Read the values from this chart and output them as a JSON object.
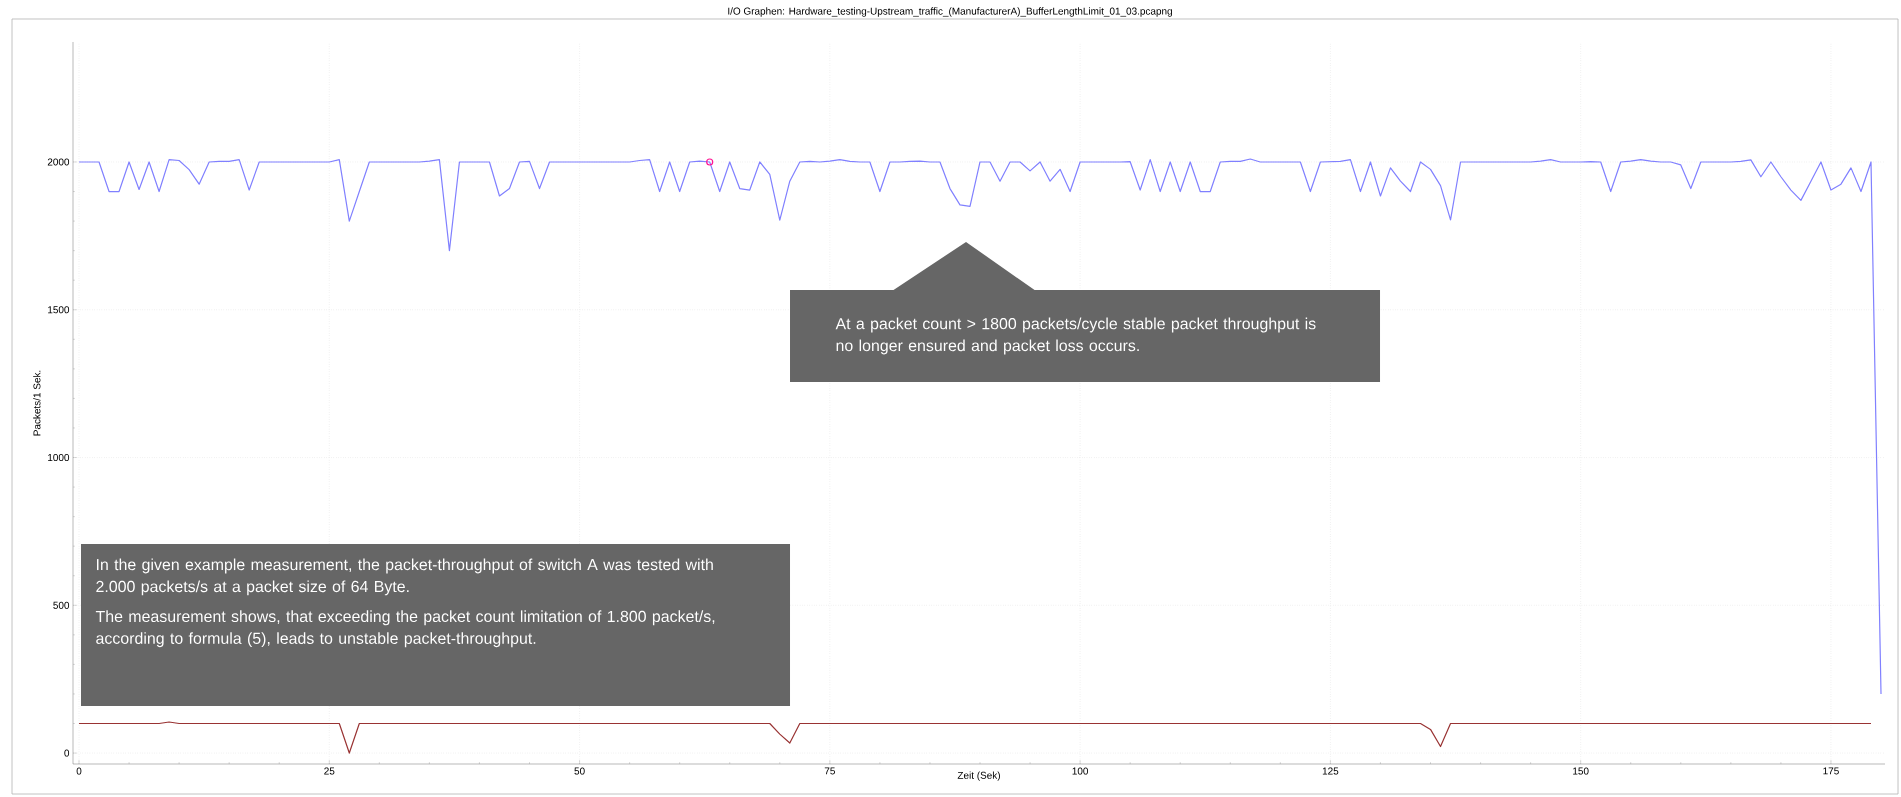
{
  "chart_data": {
    "type": "line",
    "title": "I/O Graphen: Hardware_testing-Upstream_traffic_(ManufacturerA)_BufferLengthLimit_01_03.pcapng",
    "xlabel": "Zeit (Sek)",
    "ylabel": "Packets/1 Sek.",
    "x": [
      0,
      1,
      2,
      3,
      4,
      5,
      6,
      7,
      8,
      9,
      10,
      11,
      12,
      13,
      14,
      15,
      16,
      17,
      18,
      19,
      20,
      21,
      22,
      23,
      24,
      25,
      26,
      27,
      28,
      29,
      30,
      31,
      32,
      33,
      34,
      35,
      36,
      37,
      38,
      39,
      40,
      41,
      42,
      43,
      44,
      45,
      46,
      47,
      48,
      49,
      50,
      51,
      52,
      53,
      54,
      55,
      56,
      57,
      58,
      59,
      60,
      61,
      62,
      63,
      64,
      65,
      66,
      67,
      68,
      69,
      70,
      71,
      72,
      73,
      74,
      75,
      76,
      77,
      78,
      79,
      80,
      81,
      82,
      83,
      84,
      85,
      86,
      87,
      88,
      89,
      90,
      91,
      92,
      93,
      94,
      95,
      96,
      97,
      98,
      99,
      100,
      101,
      102,
      103,
      104,
      105,
      106,
      107,
      108,
      109,
      110,
      111,
      112,
      113,
      114,
      115,
      116,
      117,
      118,
      119,
      120,
      121,
      122,
      123,
      124,
      125,
      126,
      127,
      128,
      129,
      130,
      131,
      132,
      133,
      134,
      135,
      136,
      137,
      138,
      139,
      140,
      141,
      142,
      143,
      144,
      145,
      146,
      147,
      148,
      149,
      150,
      151,
      152,
      153,
      154,
      155,
      156,
      157,
      158,
      159,
      160,
      161,
      162,
      163,
      164,
      165,
      166,
      167,
      168,
      169,
      170,
      171,
      172,
      173,
      174,
      175,
      176,
      177,
      178,
      179,
      180
    ],
    "xlim": [
      -0.6,
      180.4
    ],
    "ylim": [
      -37,
      2406
    ],
    "xticks": [
      0,
      25,
      50,
      75,
      100,
      125,
      150,
      175
    ],
    "yticks": [
      0,
      500,
      1000,
      1500,
      2000
    ],
    "grid": true,
    "annotations": [
      "At a packet count > 1800 packets/cycle stable packet throughput is no longer ensured and packet loss occurs.",
      "In the given example measurement, the packet-throughput of switch A was tested with 2.000 packets/s at a packet size of 64 Byte.",
      "The measurement shows, that exceeding the packet count limitation of 1.800 packet/s, according to formula (5), leads to unstable packet-throughput."
    ],
    "series": [
      {
        "color": "#8080ff",
        "values": [
          2000,
          2000,
          2000,
          1900,
          1900,
          2000,
          1907,
          2000,
          1900,
          2008,
          2005,
          1974,
          1925,
          2000,
          2002,
          2002,
          2008,
          1905,
          2000,
          2000,
          2000,
          2000,
          2000,
          2000,
          2000,
          2000,
          2008,
          1800,
          1900,
          2000,
          2000,
          2000,
          2000,
          2000,
          2000,
          2003,
          2008,
          1700,
          2000,
          2000,
          2000,
          2000,
          1885,
          1910,
          2000,
          2002,
          1910,
          2000,
          2000,
          2000,
          2000,
          2000,
          2000,
          2000,
          2000,
          2000,
          2005,
          2008,
          1900,
          2000,
          1900,
          2000,
          2003,
          2000,
          1900,
          2000,
          1910,
          1905,
          2000,
          1958,
          1803,
          1935,
          2000,
          2002,
          2000,
          2003,
          2008,
          2002,
          2000,
          2000,
          1900,
          2000,
          2000,
          2002,
          2003,
          2000,
          2000,
          1910,
          1855,
          1850,
          2000,
          2000,
          1935,
          2000,
          2000,
          1970,
          2000,
          1935,
          1975,
          1900,
          2000,
          2000,
          2000,
          2000,
          2000,
          2001,
          1905,
          2008,
          1900,
          2000,
          1900,
          2000,
          1900,
          1900,
          2000,
          2002,
          2002,
          2010,
          2000,
          2000,
          2000,
          2000,
          2000,
          1900,
          2000,
          2001,
          2002,
          2008,
          1900,
          2000,
          1885,
          1980,
          1935,
          1900,
          2000,
          1975,
          1920,
          1804,
          2000,
          2000,
          2000,
          2000,
          2000,
          2000,
          2000,
          2000,
          2003,
          2008,
          2000,
          2000,
          2000,
          2001,
          2000,
          1900,
          2000,
          2003,
          2008,
          2003,
          2000,
          2000,
          1990,
          1910,
          2000,
          2000,
          2000,
          2000,
          2002,
          2007,
          1950,
          2000,
          1950,
          1905,
          1870,
          1935,
          2000,
          1905,
          1925,
          1980,
          1900,
          2000,
          200
        ]
      },
      {
        "color": "#993333",
        "x": [
          0,
          1,
          2,
          3,
          4,
          5,
          6,
          7,
          8,
          9,
          10,
          11,
          12,
          13,
          14,
          15,
          16,
          17,
          18,
          19,
          20,
          21,
          22,
          23,
          24,
          25,
          26,
          27,
          28,
          29,
          30,
          31,
          32,
          33,
          34,
          35,
          36,
          37,
          38,
          39,
          40,
          41,
          42,
          43,
          44,
          45,
          46,
          47,
          48,
          49,
          50,
          51,
          52,
          53,
          54,
          55,
          56,
          57,
          58,
          59,
          60,
          61,
          62,
          63,
          64,
          65,
          66,
          67,
          68,
          69,
          70,
          71,
          72,
          73,
          74,
          75,
          76,
          77,
          78,
          79,
          80,
          81,
          82,
          83,
          84,
          85,
          86,
          87,
          88,
          89,
          90,
          91,
          92,
          93,
          94,
          95,
          96,
          97,
          98,
          99,
          100,
          101,
          102,
          103,
          104,
          105,
          106,
          107,
          108,
          109,
          110,
          111,
          112,
          113,
          114,
          115,
          116,
          117,
          118,
          119,
          120,
          121,
          122,
          123,
          124,
          125,
          126,
          127,
          128,
          129,
          130,
          131,
          132,
          133,
          134,
          135,
          136,
          137,
          138,
          139,
          140,
          141,
          142,
          143,
          144,
          145,
          146,
          147,
          148,
          149,
          150,
          151,
          152,
          153,
          154,
          155,
          156,
          157,
          158,
          159,
          160,
          161,
          162,
          163,
          164,
          165,
          166,
          167,
          168,
          169,
          170,
          171,
          172,
          173,
          174,
          175,
          176,
          177,
          178,
          179
        ],
        "values": [
          100,
          100,
          100,
          100,
          100,
          100,
          100,
          100,
          100,
          105,
          100,
          100,
          100,
          100,
          100,
          100,
          100,
          100,
          100,
          100,
          100,
          100,
          100,
          100,
          100,
          100,
          100,
          0,
          100,
          100,
          100,
          100,
          100,
          100,
          100,
          100,
          100,
          100,
          100,
          100,
          100,
          100,
          100,
          100,
          100,
          100,
          100,
          100,
          100,
          100,
          100,
          100,
          100,
          100,
          100,
          100,
          100,
          100,
          100,
          100,
          100,
          100,
          100,
          100,
          100,
          100,
          100,
          100,
          100,
          100,
          64,
          34,
          100,
          100,
          100,
          100,
          100,
          100,
          100,
          100,
          100,
          100,
          100,
          100,
          100,
          100,
          100,
          100,
          100,
          100,
          100,
          100,
          100,
          100,
          100,
          100,
          100,
          100,
          100,
          100,
          100,
          100,
          100,
          100,
          100,
          100,
          100,
          100,
          100,
          100,
          100,
          100,
          100,
          100,
          100,
          100,
          100,
          100,
          100,
          100,
          100,
          100,
          100,
          100,
          100,
          100,
          100,
          100,
          100,
          100,
          100,
          100,
          100,
          100,
          100,
          80,
          22,
          100,
          100,
          100,
          100,
          100,
          100,
          100,
          100,
          100,
          100,
          100,
          100,
          100,
          100,
          100,
          100,
          100,
          100,
          100,
          100,
          100,
          100,
          100,
          100,
          100,
          100,
          100,
          100,
          100,
          100,
          100,
          100,
          100,
          100,
          100,
          100,
          100,
          100,
          100,
          100,
          100,
          100,
          100
        ]
      },
      {
        "type": "scatter",
        "color": "#ff1493",
        "x": [
          63
        ],
        "values": [
          2000
        ],
        "marker": "circle"
      }
    ]
  }
}
